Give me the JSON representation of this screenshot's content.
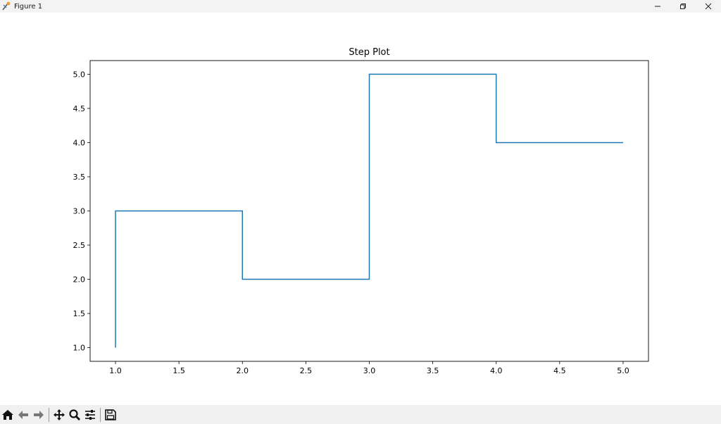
{
  "window": {
    "title": "Figure 1",
    "controls": {
      "minimize": "—",
      "restore": "⧉",
      "close": "✕"
    }
  },
  "toolbar": {
    "icons": [
      "home-icon",
      "back-icon",
      "forward-icon",
      "pan-icon",
      "zoom-icon",
      "configure-icon",
      "save-icon"
    ]
  },
  "chart_data": {
    "type": "line",
    "drawstyle": "steps-pre",
    "title": "Step Plot",
    "xlabel": "",
    "ylabel": "",
    "x": [
      1,
      2,
      3,
      4,
      5
    ],
    "series": [
      {
        "values": [
          1,
          3,
          2,
          5,
          4
        ],
        "color": "#1f77b4"
      }
    ],
    "xlim": [
      0.8,
      5.2
    ],
    "ylim": [
      0.8,
      5.2
    ],
    "xticks": [
      "1.0",
      "1.5",
      "2.0",
      "2.5",
      "3.0",
      "3.5",
      "4.0",
      "4.5",
      "5.0"
    ],
    "yticks": [
      "1.0",
      "1.5",
      "2.0",
      "2.5",
      "3.0",
      "3.5",
      "4.0",
      "4.5",
      "5.0"
    ],
    "grid": false,
    "legend": "none"
  }
}
